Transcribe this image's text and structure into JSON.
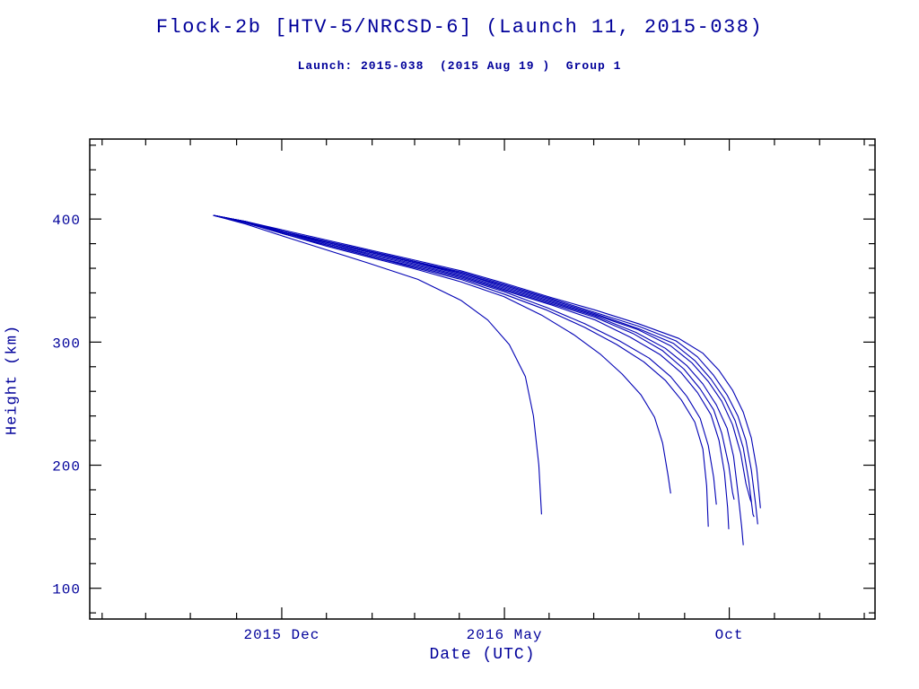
{
  "header": {
    "title": "Flock-2b [HTV-5/NRCSD-6] (Launch 11, 2015-038)",
    "subtitle": "Launch: 2015-038  (2015 Aug 19 )  Group 1"
  },
  "colors": {
    "text": "#00009a",
    "line": "#0000b4",
    "frame": "#000000"
  },
  "chart_data": {
    "type": "line",
    "title": "Flock-2b [HTV-5/NRCSD-6] (Launch 11, 2015-038)",
    "subtitle": "Launch: 2015-038  (2015 Aug 19 )  Group 1",
    "xlabel": "Date (UTC)",
    "ylabel": "Height (km)",
    "x_unit": "decimal_year",
    "xlim": [
      2015.56,
      2017.02
    ],
    "ylim": [
      75,
      465
    ],
    "grid": false,
    "legend": "none",
    "x_ticks": [
      {
        "value": 2015.917,
        "label": "2015 Dec"
      },
      {
        "value": 2016.331,
        "label": "2016 May"
      },
      {
        "value": 2016.749,
        "label": "Oct"
      }
    ],
    "x_minor_ticks": [
      2015.583,
      2015.664,
      2015.747,
      2015.833,
      2016.0,
      2016.085,
      2016.164,
      2016.247,
      2016.414,
      2016.497,
      2016.581,
      2016.666,
      2016.833,
      2016.917,
      2017.0
    ],
    "y_ticks": [
      {
        "value": 100,
        "label": "100"
      },
      {
        "value": 200,
        "label": "200"
      },
      {
        "value": 300,
        "label": "300"
      },
      {
        "value": 400,
        "label": "400"
      }
    ],
    "y_minor_ticks": [
      80,
      120,
      140,
      160,
      180,
      220,
      240,
      260,
      280,
      320,
      340,
      360,
      380,
      420,
      440,
      460
    ],
    "series": [
      {
        "points": [
          [
            2015.79,
            403
          ],
          [
            2015.85,
            396
          ],
          [
            2015.92,
            386
          ],
          [
            2016.0,
            375
          ],
          [
            2016.08,
            364
          ],
          [
            2016.17,
            351
          ],
          [
            2016.25,
            334
          ],
          [
            2016.3,
            318
          ],
          [
            2016.34,
            298
          ],
          [
            2016.37,
            272
          ],
          [
            2016.385,
            240
          ],
          [
            2016.395,
            200
          ],
          [
            2016.4,
            160
          ]
        ]
      },
      {
        "points": [
          [
            2015.79,
            403
          ],
          [
            2015.85,
            397
          ],
          [
            2015.92,
            388
          ],
          [
            2016.0,
            378
          ],
          [
            2016.08,
            369
          ],
          [
            2016.16,
            360
          ],
          [
            2016.25,
            349
          ],
          [
            2016.33,
            337
          ],
          [
            2016.4,
            322
          ],
          [
            2016.46,
            306
          ],
          [
            2016.51,
            290
          ],
          [
            2016.55,
            274
          ],
          [
            2016.585,
            257
          ],
          [
            2016.61,
            239
          ],
          [
            2016.625,
            218
          ],
          [
            2016.635,
            192
          ],
          [
            2016.64,
            177
          ]
        ]
      },
      {
        "points": [
          [
            2015.79,
            403
          ],
          [
            2015.85,
            397
          ],
          [
            2015.92,
            388
          ],
          [
            2016.0,
            379
          ],
          [
            2016.08,
            370
          ],
          [
            2016.16,
            361
          ],
          [
            2016.25,
            351
          ],
          [
            2016.33,
            339
          ],
          [
            2016.41,
            326
          ],
          [
            2016.48,
            312
          ],
          [
            2016.54,
            298
          ],
          [
            2016.59,
            284
          ],
          [
            2016.63,
            269
          ],
          [
            2016.66,
            253
          ],
          [
            2016.685,
            235
          ],
          [
            2016.7,
            213
          ],
          [
            2016.707,
            183
          ],
          [
            2016.71,
            150
          ]
        ]
      },
      {
        "points": [
          [
            2015.79,
            403
          ],
          [
            2015.85,
            397
          ],
          [
            2015.92,
            388
          ],
          [
            2016.0,
            379
          ],
          [
            2016.08,
            370
          ],
          [
            2016.16,
            362
          ],
          [
            2016.25,
            352
          ],
          [
            2016.33,
            341
          ],
          [
            2016.41,
            328
          ],
          [
            2016.48,
            315
          ],
          [
            2016.545,
            301
          ],
          [
            2016.6,
            287
          ],
          [
            2016.64,
            272
          ],
          [
            2016.67,
            256
          ],
          [
            2016.695,
            238
          ],
          [
            2016.71,
            216
          ],
          [
            2016.72,
            190
          ],
          [
            2016.725,
            168
          ]
        ]
      },
      {
        "points": [
          [
            2015.79,
            403
          ],
          [
            2015.85,
            397
          ],
          [
            2015.92,
            389
          ],
          [
            2016.0,
            380
          ],
          [
            2016.08,
            371
          ],
          [
            2016.16,
            363
          ],
          [
            2016.25,
            353
          ],
          [
            2016.33,
            342
          ],
          [
            2016.42,
            330
          ],
          [
            2016.5,
            318
          ],
          [
            2016.565,
            304
          ],
          [
            2016.62,
            290
          ],
          [
            2016.66,
            275
          ],
          [
            2016.69,
            259
          ],
          [
            2016.715,
            241
          ],
          [
            2016.73,
            220
          ],
          [
            2016.74,
            194
          ],
          [
            2016.746,
            165
          ],
          [
            2016.748,
            148
          ]
        ]
      },
      {
        "points": [
          [
            2015.79,
            403
          ],
          [
            2015.85,
            398
          ],
          [
            2015.92,
            389
          ],
          [
            2016.0,
            380
          ],
          [
            2016.08,
            372
          ],
          [
            2016.16,
            364
          ],
          [
            2016.25,
            354
          ],
          [
            2016.33,
            343
          ],
          [
            2016.42,
            331
          ],
          [
            2016.5,
            320
          ],
          [
            2016.57,
            307
          ],
          [
            2016.625,
            293
          ],
          [
            2016.665,
            278
          ],
          [
            2016.695,
            262
          ],
          [
            2016.72,
            245
          ],
          [
            2016.735,
            226
          ],
          [
            2016.748,
            200
          ],
          [
            2016.755,
            178
          ],
          [
            2016.758,
            172
          ]
        ]
      },
      {
        "points": [
          [
            2015.79,
            403
          ],
          [
            2015.85,
            398
          ],
          [
            2015.92,
            389
          ],
          [
            2016.0,
            381
          ],
          [
            2016.08,
            373
          ],
          [
            2016.16,
            365
          ],
          [
            2016.25,
            355
          ],
          [
            2016.33,
            344
          ],
          [
            2016.42,
            332
          ],
          [
            2016.5,
            321
          ],
          [
            2016.575,
            308
          ],
          [
            2016.63,
            295
          ],
          [
            2016.67,
            281
          ],
          [
            2016.7,
            266
          ],
          [
            2016.725,
            249
          ],
          [
            2016.745,
            230
          ],
          [
            2016.757,
            207
          ],
          [
            2016.765,
            178
          ],
          [
            2016.772,
            150
          ],
          [
            2016.775,
            135
          ]
        ]
      },
      {
        "points": [
          [
            2015.79,
            403
          ],
          [
            2015.85,
            398
          ],
          [
            2015.92,
            390
          ],
          [
            2016.0,
            381
          ],
          [
            2016.08,
            373
          ],
          [
            2016.16,
            365
          ],
          [
            2016.25,
            356
          ],
          [
            2016.33,
            345
          ],
          [
            2016.42,
            333
          ],
          [
            2016.5,
            322
          ],
          [
            2016.58,
            310
          ],
          [
            2016.64,
            297
          ],
          [
            2016.68,
            283
          ],
          [
            2016.71,
            268
          ],
          [
            2016.735,
            252
          ],
          [
            2016.755,
            233
          ],
          [
            2016.77,
            210
          ],
          [
            2016.78,
            185
          ],
          [
            2016.788,
            172
          ],
          [
            2016.79,
            170
          ]
        ]
      },
      {
        "points": [
          [
            2015.79,
            403
          ],
          [
            2015.85,
            398
          ],
          [
            2015.92,
            390
          ],
          [
            2016.0,
            382
          ],
          [
            2016.08,
            374
          ],
          [
            2016.16,
            366
          ],
          [
            2016.25,
            356
          ],
          [
            2016.33,
            346
          ],
          [
            2016.42,
            334
          ],
          [
            2016.5,
            323
          ],
          [
            2016.58,
            311
          ],
          [
            2016.645,
            299
          ],
          [
            2016.685,
            285
          ],
          [
            2016.715,
            270
          ],
          [
            2016.74,
            254
          ],
          [
            2016.76,
            236
          ],
          [
            2016.775,
            214
          ],
          [
            2016.785,
            188
          ],
          [
            2016.793,
            160
          ],
          [
            2016.795,
            158
          ]
        ]
      },
      {
        "points": [
          [
            2015.79,
            403
          ],
          [
            2015.85,
            398
          ],
          [
            2015.92,
            390
          ],
          [
            2016.0,
            382
          ],
          [
            2016.08,
            374
          ],
          [
            2016.16,
            366
          ],
          [
            2016.25,
            357
          ],
          [
            2016.33,
            347
          ],
          [
            2016.42,
            335
          ],
          [
            2016.5,
            324
          ],
          [
            2016.58,
            313
          ],
          [
            2016.65,
            301
          ],
          [
            2016.69,
            288
          ],
          [
            2016.72,
            273
          ],
          [
            2016.745,
            257
          ],
          [
            2016.765,
            240
          ],
          [
            2016.78,
            220
          ],
          [
            2016.79,
            196
          ],
          [
            2016.798,
            168
          ],
          [
            2016.802,
            152
          ]
        ]
      },
      {
        "points": [
          [
            2015.79,
            403
          ],
          [
            2015.85,
            398
          ],
          [
            2015.92,
            391
          ],
          [
            2016.0,
            383
          ],
          [
            2016.08,
            375
          ],
          [
            2016.16,
            367
          ],
          [
            2016.25,
            358
          ],
          [
            2016.33,
            348
          ],
          [
            2016.42,
            336
          ],
          [
            2016.5,
            326
          ],
          [
            2016.58,
            315
          ],
          [
            2016.655,
            303
          ],
          [
            2016.7,
            291
          ],
          [
            2016.73,
            277
          ],
          [
            2016.755,
            261
          ],
          [
            2016.775,
            243
          ],
          [
            2016.79,
            222
          ],
          [
            2016.8,
            197
          ],
          [
            2016.806,
            170
          ],
          [
            2016.807,
            165
          ]
        ]
      }
    ]
  }
}
